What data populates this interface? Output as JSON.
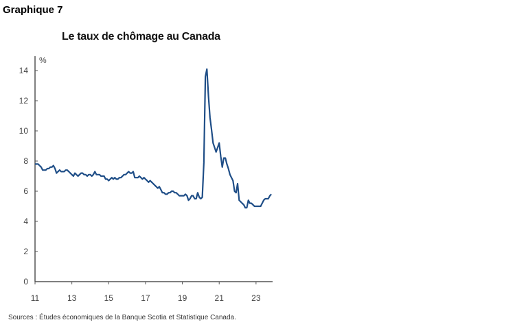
{
  "figure_label": "Graphique 7",
  "source": "Sources : Études économiques de la Banque Scotia et Statistique Canada.",
  "chart_data": {
    "type": "line",
    "title": "Le taux de chômage au Canada",
    "ylabel": "%",
    "xlabel": "",
    "ylim": [
      0,
      14
    ],
    "xlim": [
      2011,
      2023.9
    ],
    "yticks": [
      0,
      2,
      4,
      6,
      8,
      10,
      12,
      14
    ],
    "xtick_labels": [
      "11",
      "13",
      "15",
      "17",
      "19",
      "21",
      "23"
    ],
    "xtick_values": [
      2011,
      2013,
      2015,
      2017,
      2019,
      2021,
      2023
    ],
    "grid": false,
    "line_color": "#1f4e87",
    "series": [
      {
        "x_start": "2011-01",
        "frequency": "monthly",
        "values": [
          7.8,
          7.8,
          7.8,
          7.7,
          7.6,
          7.4,
          7.4,
          7.4,
          7.5,
          7.5,
          7.6,
          7.6,
          7.7,
          7.5,
          7.2,
          7.3,
          7.4,
          7.3,
          7.3,
          7.3,
          7.4,
          7.4,
          7.3,
          7.2,
          7.1,
          7.0,
          7.2,
          7.1,
          7.0,
          7.1,
          7.2,
          7.2,
          7.1,
          7.1,
          7.0,
          7.1,
          7.1,
          7.0,
          7.1,
          7.3,
          7.1,
          7.1,
          7.1,
          7.0,
          7.0,
          7.0,
          6.8,
          6.8,
          6.7,
          6.8,
          6.9,
          6.8,
          6.9,
          6.8,
          6.8,
          6.9,
          6.9,
          7.0,
          7.1,
          7.1,
          7.2,
          7.3,
          7.2,
          7.2,
          7.3,
          6.9,
          6.9,
          6.9,
          7.0,
          6.9,
          6.8,
          6.9,
          6.8,
          6.7,
          6.6,
          6.7,
          6.6,
          6.5,
          6.4,
          6.3,
          6.2,
          6.3,
          6.1,
          5.9,
          5.9,
          5.8,
          5.8,
          5.9,
          5.9,
          6.0,
          6.0,
          5.9,
          5.9,
          5.8,
          5.7,
          5.7,
          5.7,
          5.7,
          5.8,
          5.7,
          5.4,
          5.5,
          5.7,
          5.7,
          5.5,
          5.5,
          5.9,
          5.6,
          5.5,
          5.6,
          7.9,
          13.6,
          14.1,
          12.3,
          10.9,
          10.1,
          9.2,
          8.9,
          8.6,
          8.9,
          9.2,
          8.3,
          7.6,
          8.2,
          8.2,
          7.8,
          7.5,
          7.1,
          6.9,
          6.7,
          6.0,
          5.9,
          6.5,
          5.4,
          5.3,
          5.2,
          5.1,
          4.9,
          4.9,
          5.4,
          5.2,
          5.2,
          5.1,
          5.0,
          5.0,
          5.0,
          5.0,
          5.0,
          5.2,
          5.4,
          5.5,
          5.5,
          5.5,
          5.7,
          5.8
        ]
      }
    ]
  }
}
